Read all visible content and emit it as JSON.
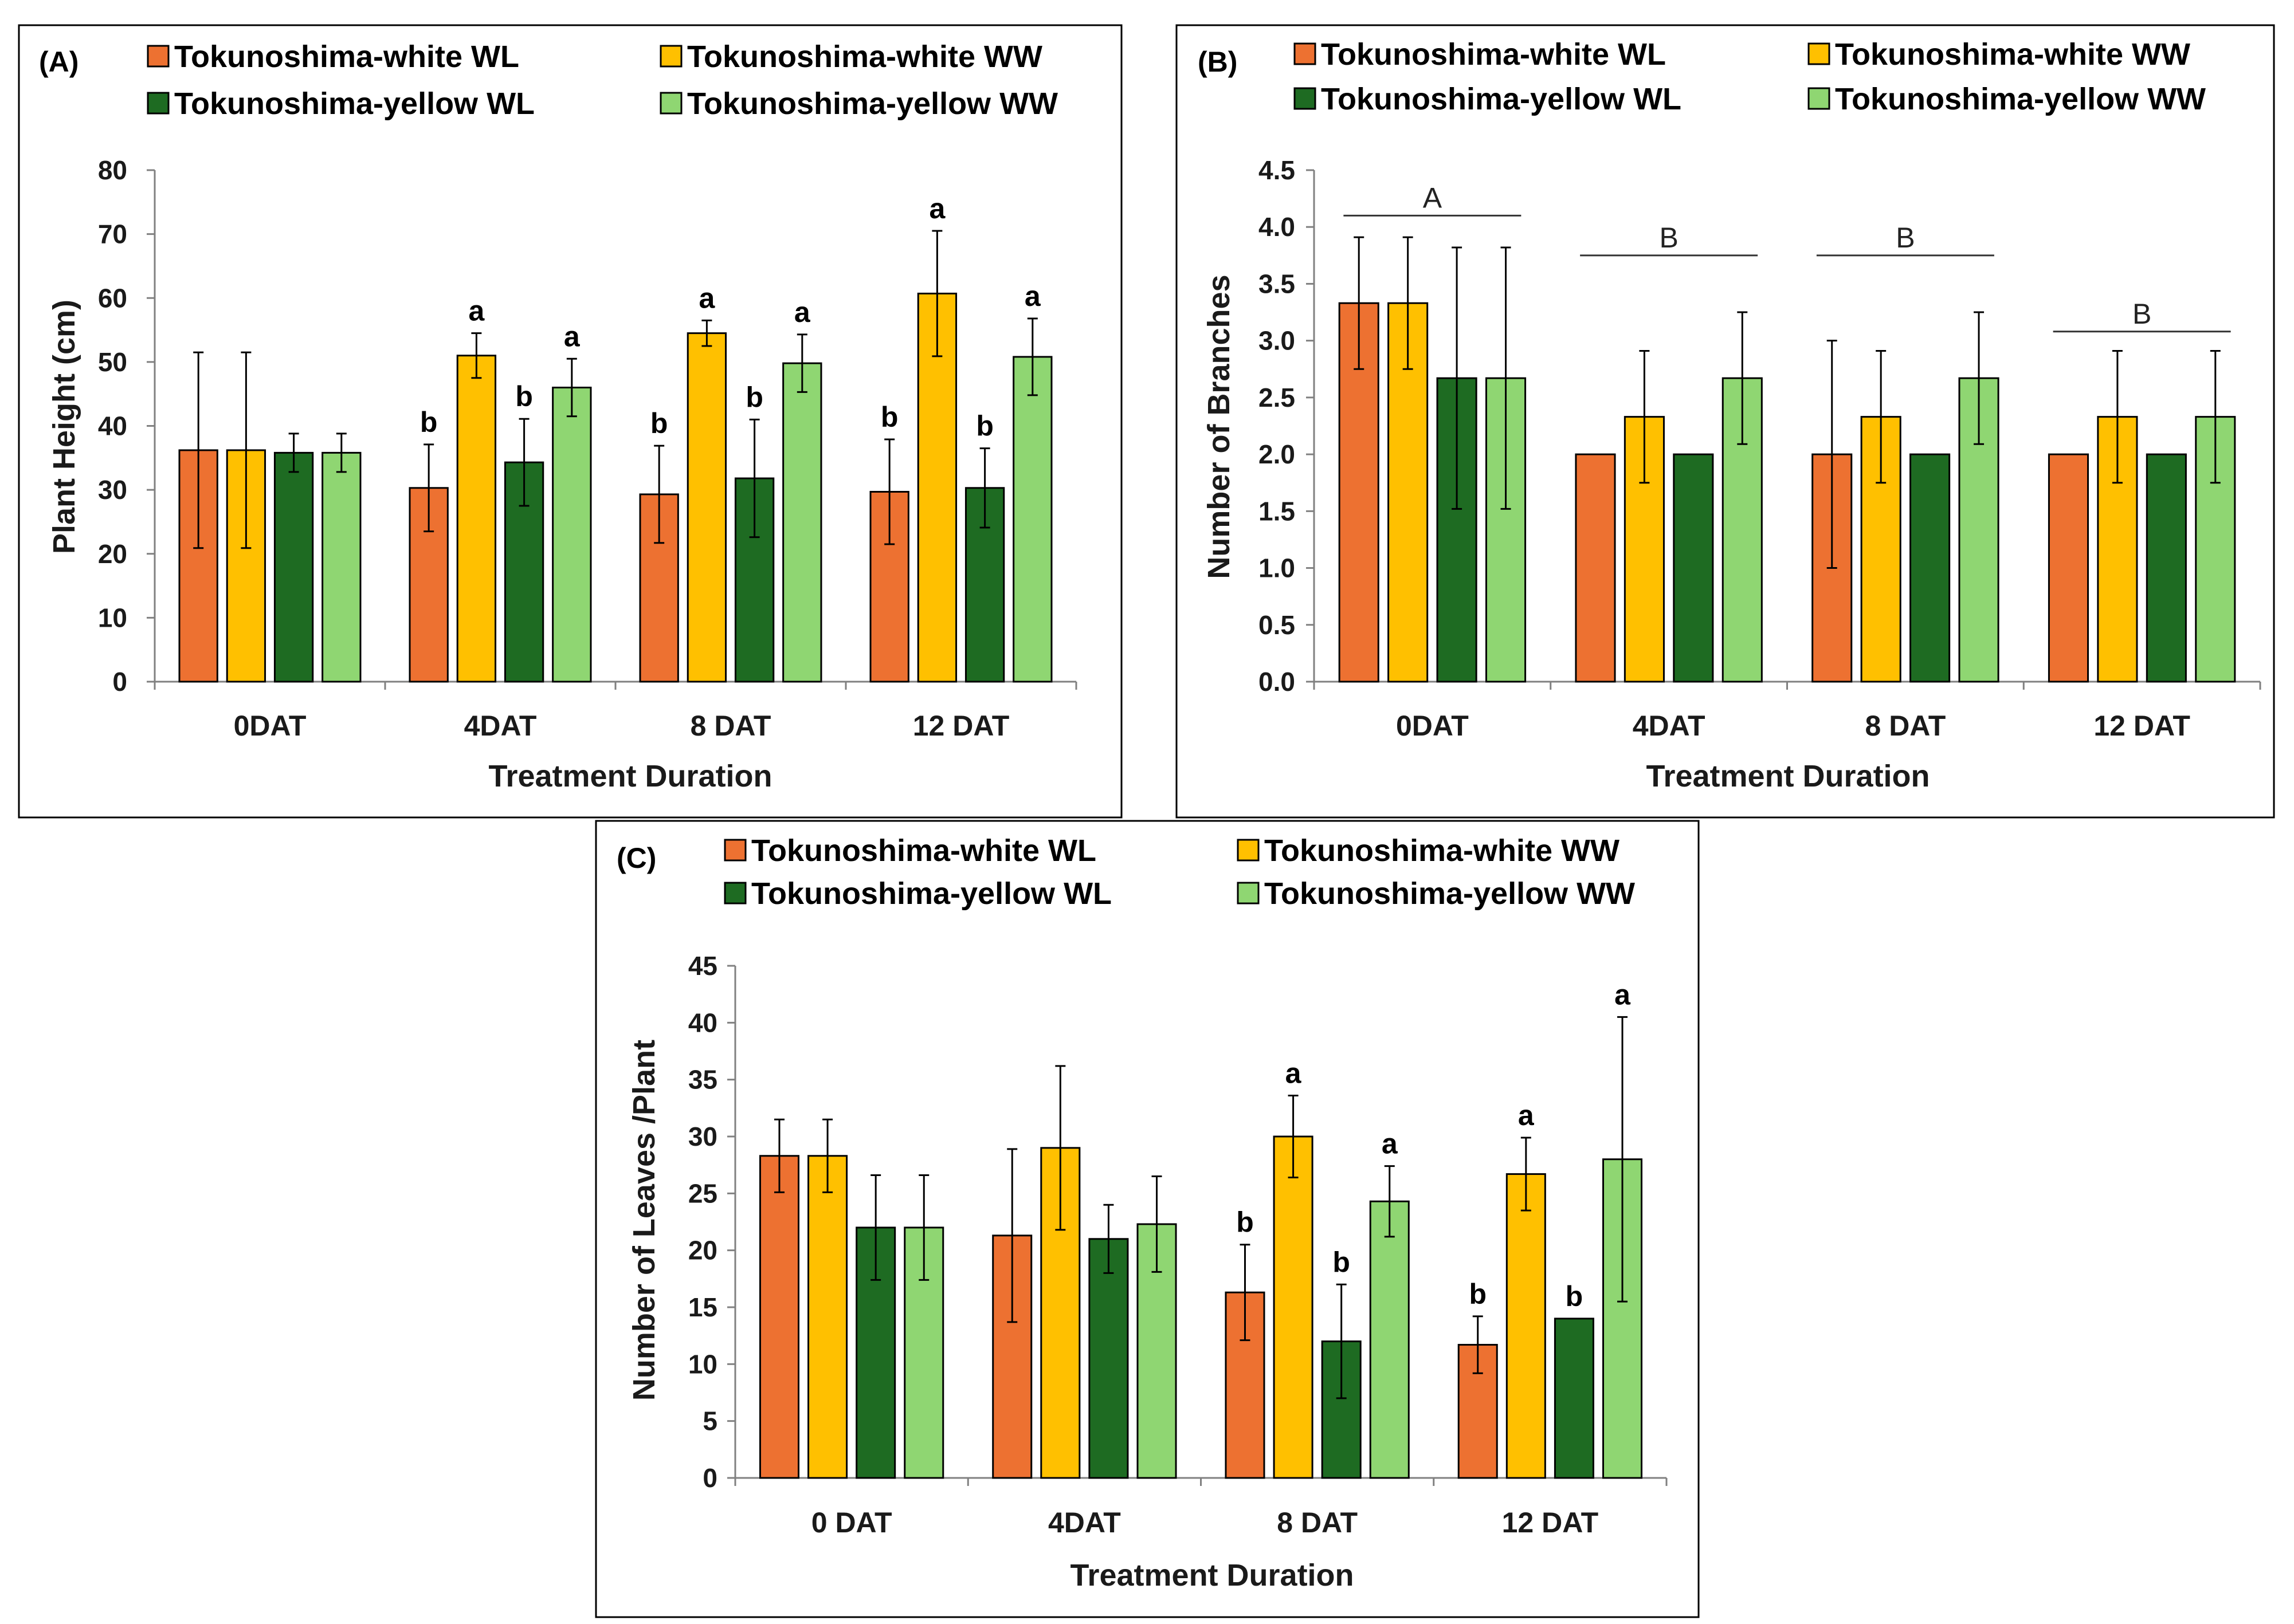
{
  "colors": {
    "white_WL": "#ED7131",
    "white_WW": "#FFC000",
    "yellow_WL": "#1E6B22",
    "yellow_WW": "#8FD672"
  },
  "chart_data": [
    {
      "panel": "(A)",
      "type": "bar",
      "legend": [
        "Tokunoshima-white WL",
        "Tokunoshima-white WW",
        "Tokunoshima-yellow WL",
        "Tokunoshima-yellow WW"
      ],
      "categories": [
        "0DAT",
        "4DAT",
        "8 DAT",
        "12 DAT"
      ],
      "xlabel": "Treatment Duration",
      "ylabel": "Plant Height (cm)",
      "ylim": [
        0,
        80
      ],
      "yticks": [
        "0",
        "10",
        "20",
        "30",
        "40",
        "50",
        "60",
        "70",
        "80"
      ],
      "series": [
        {
          "name": "Tokunoshima-white WL",
          "color_key": "white_WL",
          "values": [
            36.2,
            30.3,
            29.3,
            29.7
          ],
          "errors": [
            15.3,
            6.8,
            7.6,
            8.2
          ],
          "sig": [
            "",
            "b",
            "b",
            "b"
          ]
        },
        {
          "name": "Tokunoshima-white WW",
          "color_key": "white_WW",
          "values": [
            36.2,
            51.0,
            54.5,
            60.7
          ],
          "errors": [
            15.3,
            3.5,
            2.0,
            9.8
          ],
          "sig": [
            "",
            "a",
            "a",
            "a"
          ]
        },
        {
          "name": "Tokunoshima-yellow WL",
          "color_key": "yellow_WL",
          "values": [
            35.8,
            34.3,
            31.8,
            30.3
          ],
          "errors": [
            3.0,
            6.8,
            9.2,
            6.2
          ],
          "sig": [
            "",
            "b",
            "b",
            "b"
          ]
        },
        {
          "name": "Tokunoshima-yellow WW",
          "color_key": "yellow_WW",
          "values": [
            35.8,
            46.0,
            49.8,
            50.8
          ],
          "errors": [
            3.0,
            4.5,
            4.5,
            6.0
          ],
          "sig": [
            "",
            "a",
            "a",
            "a"
          ]
        }
      ],
      "group_labels": []
    },
    {
      "panel": "(B)",
      "type": "bar",
      "legend": [
        "Tokunoshima-white WL",
        "Tokunoshima-white WW",
        "Tokunoshima-yellow  WL",
        "Tokunoshima-yellow  WW"
      ],
      "categories": [
        "0DAT",
        "4DAT",
        "8 DAT",
        "12 DAT"
      ],
      "xlabel": "Treatment Duration",
      "ylabel": "Number of Branches",
      "ylim": [
        0,
        4.5
      ],
      "yticks": [
        "0.0",
        "0.5",
        "1.0",
        "1.5",
        "2.0",
        "2.5",
        "3.0",
        "3.5",
        "4.0",
        "4.5"
      ],
      "series": [
        {
          "name": "Tokunoshima-white WL",
          "color_key": "white_WL",
          "values": [
            3.33,
            2.0,
            2.0,
            2.0
          ],
          "errors": [
            0.58,
            0,
            1.0,
            0
          ],
          "sig": [
            "",
            "",
            "",
            ""
          ]
        },
        {
          "name": "Tokunoshima-white WW",
          "color_key": "white_WW",
          "values": [
            3.33,
            2.33,
            2.33,
            2.33
          ],
          "errors": [
            0.58,
            0.58,
            0.58,
            0.58
          ],
          "sig": [
            "",
            "",
            "",
            ""
          ]
        },
        {
          "name": "Tokunoshima-yellow  WL",
          "color_key": "yellow_WL",
          "values": [
            2.67,
            2.0,
            2.0,
            2.0
          ],
          "errors": [
            1.15,
            0,
            0,
            0
          ],
          "sig": [
            "",
            "",
            "",
            ""
          ]
        },
        {
          "name": "Tokunoshima-yellow  WW",
          "color_key": "yellow_WW",
          "values": [
            2.67,
            2.67,
            2.67,
            2.33
          ],
          "errors": [
            1.15,
            0.58,
            0.58,
            0.58
          ],
          "sig": [
            "",
            "",
            "",
            ""
          ]
        }
      ],
      "group_labels": [
        {
          "text": "A",
          "at": 4.1
        },
        {
          "text": "B",
          "at": 3.75
        },
        {
          "text": "B",
          "at": 3.75
        },
        {
          "text": "B",
          "at": 3.08
        }
      ]
    },
    {
      "panel": "(C)",
      "type": "bar",
      "legend": [
        "Tokunoshima-white WL",
        "Tokunoshima-white WW",
        "Tokunoshima-yellow  WL",
        "Tokunoshima-yellow  WW"
      ],
      "categories": [
        "0 DAT",
        "4DAT",
        "8 DAT",
        "12 DAT"
      ],
      "xlabel": "Treatment Duration",
      "ylabel": "Number of Leaves /Plant",
      "ylim": [
        0,
        45
      ],
      "yticks": [
        "0",
        "5",
        "10",
        "15",
        "20",
        "25",
        "30",
        "35",
        "40",
        "45"
      ],
      "series": [
        {
          "name": "Tokunoshima-white WL",
          "color_key": "white_WL",
          "values": [
            28.3,
            21.3,
            16.3,
            11.7
          ],
          "errors": [
            3.2,
            7.6,
            4.2,
            2.5
          ],
          "sig": [
            "",
            "",
            "b",
            "b"
          ]
        },
        {
          "name": "Tokunoshima-white WW",
          "color_key": "white_WW",
          "values": [
            28.3,
            29.0,
            30.0,
            26.7
          ],
          "errors": [
            3.2,
            7.2,
            3.6,
            3.2
          ],
          "sig": [
            "",
            "",
            "a",
            "a"
          ]
        },
        {
          "name": "Tokunoshima-yellow  WL",
          "color_key": "yellow_WL",
          "values": [
            22.0,
            21.0,
            12.0,
            14.0
          ],
          "errors": [
            4.6,
            3.0,
            5.0,
            0
          ],
          "sig": [
            "",
            "",
            "b",
            "b"
          ]
        },
        {
          "name": "Tokunoshima-yellow  WW",
          "color_key": "yellow_WW",
          "values": [
            22.0,
            22.3,
            24.3,
            28.0
          ],
          "errors": [
            4.6,
            4.2,
            3.1,
            12.5
          ],
          "sig": [
            "",
            "",
            "a",
            "a"
          ]
        }
      ],
      "group_labels": []
    }
  ]
}
